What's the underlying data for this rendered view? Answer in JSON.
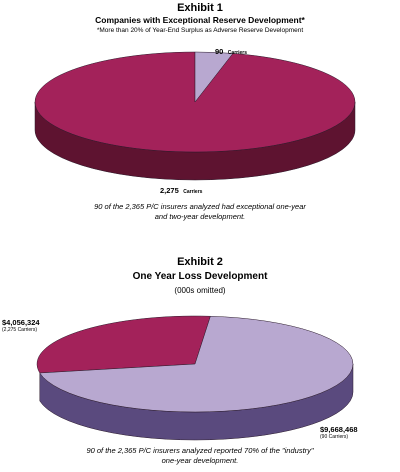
{
  "chart_data": [
    {
      "type": "pie",
      "exhibit": "Exhibit 1",
      "title": "Companies with Exceptional Reserve Development*",
      "note": "*More than 20% of Year-End Surplus as Adverse Reserve Development",
      "slices": [
        {
          "value": 90,
          "value_label": "90",
          "unit_label": "Carriers",
          "color": "#b8a8d0",
          "side_color": "#6e5f86"
        },
        {
          "value": 2275,
          "value_label": "2,275",
          "unit_label": "Carriers",
          "color": "#a3225a",
          "side_color": "#5e1330"
        }
      ],
      "caption_line1": "90 of the 2,365 P/C insurers analyzed had exceptional one-year",
      "caption_line2": "and two-year development."
    },
    {
      "type": "pie",
      "exhibit": "Exhibit 2",
      "title": "One Year Loss Development",
      "note": "(000s omitted)",
      "slices": [
        {
          "value": 4056324,
          "value_label": "$4,056,324",
          "unit_label": "(2,275 Carriers)",
          "color": "#a3225a",
          "side_color": "#5e1330"
        },
        {
          "value": 9668468,
          "value_label": "$9,668,468",
          "unit_label": "(90 Carriers)",
          "color": "#b8a8d0",
          "side_color": "#5a4a7e"
        }
      ],
      "caption_line1": "90 of the 2,365 P/C insurers analyzed reported 70% of the \"industry\"",
      "caption_line2": "one-year development."
    }
  ]
}
